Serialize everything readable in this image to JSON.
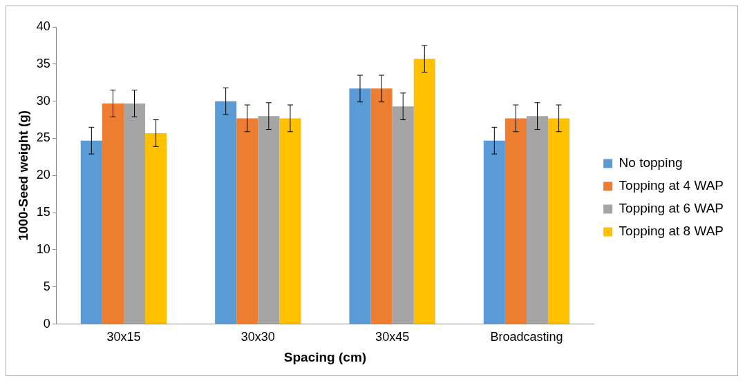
{
  "chart_data": {
    "type": "bar",
    "xlabel": "Spacing (cm)",
    "ylabel": "1000-Seed weight (g)",
    "categories": [
      "30x15",
      "30x30",
      "30x45",
      "Broadcasting"
    ],
    "series": [
      {
        "name": "No topping",
        "color": "#5b9bd5",
        "values": [
          24.7,
          30.0,
          31.7,
          24.7
        ],
        "errors": [
          1.8,
          1.8,
          1.8,
          1.8
        ]
      },
      {
        "name": "Topping at 4 WAP",
        "color": "#ed7d31",
        "values": [
          29.7,
          27.7,
          31.7,
          27.7
        ],
        "errors": [
          1.8,
          1.8,
          1.8,
          1.8
        ]
      },
      {
        "name": "Topping at 6 WAP",
        "color": "#a5a5a5",
        "values": [
          29.7,
          28.0,
          29.3,
          28.0
        ],
        "errors": [
          1.8,
          1.8,
          1.8,
          1.8
        ]
      },
      {
        "name": "Topping at 8 WAP",
        "color": "#ffc000",
        "values": [
          25.7,
          27.7,
          35.7,
          27.7
        ],
        "errors": [
          1.8,
          1.8,
          1.8,
          1.8
        ]
      }
    ],
    "ylim": [
      0,
      40
    ],
    "yticks": [
      0,
      5,
      10,
      15,
      20,
      25,
      30,
      35,
      40
    ],
    "grid": false,
    "legend": "right"
  }
}
